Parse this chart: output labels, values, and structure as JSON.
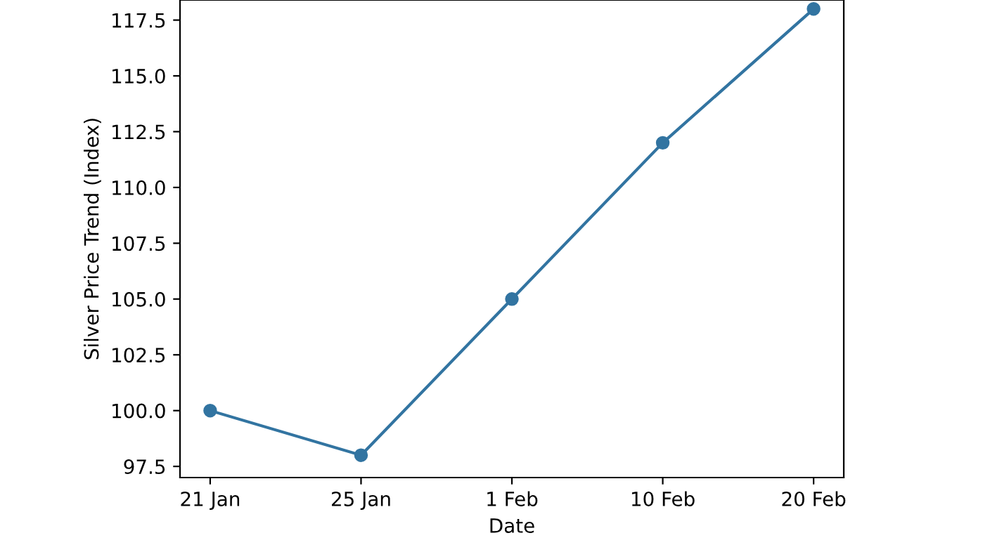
{
  "chart_data": {
    "type": "line",
    "xlabel": "Date",
    "ylabel": "Silver Price Trend (Index)",
    "categories": [
      "21 Jan",
      "25 Jan",
      "1 Feb",
      "10 Feb",
      "20 Feb"
    ],
    "series": [
      {
        "color": "#3274a1",
        "values": [
          100,
          98,
          105,
          112,
          118
        ]
      }
    ],
    "ylim": [
      97,
      118.4
    ],
    "yticks": [
      {
        "value": 97.5,
        "label": "97.5"
      },
      {
        "value": 100,
        "label": "100.0"
      },
      {
        "value": 102.5,
        "label": "102.5"
      },
      {
        "value": 105,
        "label": "105.0"
      },
      {
        "value": 107.5,
        "label": "107.5"
      },
      {
        "value": 110,
        "label": "110.0"
      },
      {
        "value": 112.5,
        "label": "112.5"
      },
      {
        "value": 115,
        "label": "115.0"
      },
      {
        "value": 117.5,
        "label": "117.5"
      }
    ],
    "marker": "circle",
    "line_style": "solid",
    "grid": false
  }
}
